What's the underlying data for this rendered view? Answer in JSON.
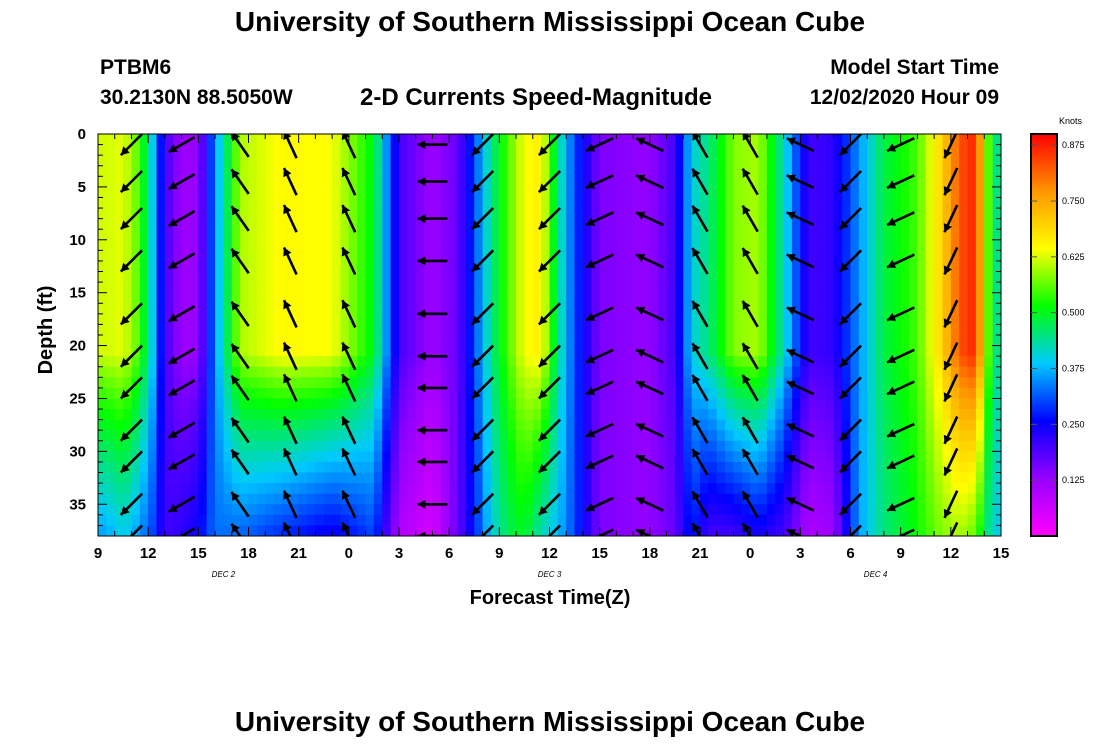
{
  "header": {
    "title": "University of Southern Mississippi Ocean Cube",
    "station": "PTBM6",
    "coords": "30.2130N 88.5050W",
    "subtitle": "2-D Currents Speed-Magnitude",
    "model_start_label": "Model Start Time",
    "model_start_value": "12/02/2020 Hour 09"
  },
  "footer": {
    "title": "University of Southern Mississippi Ocean Cube"
  },
  "colors": {
    "scale": [
      "#ff00ff",
      "#9600ff",
      "#0000ff",
      "#00c8ff",
      "#00ff00",
      "#ffff00",
      "#ff9600",
      "#ff0000"
    ]
  },
  "chart_data": {
    "type": "heatmap",
    "xlabel": "Forecast Time(Z)",
    "ylabel": "Depth (ft)",
    "x_range_hours": [
      0,
      54
    ],
    "x_ticks": [
      {
        "h": 0,
        "label": "9"
      },
      {
        "h": 3,
        "label": "12"
      },
      {
        "h": 6,
        "label": "15"
      },
      {
        "h": 9,
        "label": "18"
      },
      {
        "h": 12,
        "label": "21"
      },
      {
        "h": 15,
        "label": "0"
      },
      {
        "h": 18,
        "label": "3"
      },
      {
        "h": 21,
        "label": "6"
      },
      {
        "h": 24,
        "label": "9"
      },
      {
        "h": 27,
        "label": "12"
      },
      {
        "h": 30,
        "label": "15"
      },
      {
        "h": 33,
        "label": "18"
      },
      {
        "h": 36,
        "label": "21"
      },
      {
        "h": 39,
        "label": "0"
      },
      {
        "h": 42,
        "label": "3"
      },
      {
        "h": 45,
        "label": "6"
      },
      {
        "h": 48,
        "label": "9"
      },
      {
        "h": 51,
        "label": "12"
      },
      {
        "h": 54,
        "label": "15"
      }
    ],
    "day_labels": [
      {
        "h": 7.5,
        "label": "DEC 2"
      },
      {
        "h": 27,
        "label": "DEC 3"
      },
      {
        "h": 46.5,
        "label": "DEC 4"
      }
    ],
    "y_ticks": [
      0,
      5,
      10,
      15,
      20,
      25,
      30,
      35
    ],
    "y_range_ft": [
      0,
      38
    ],
    "colorbar": {
      "unit": "Knots",
      "range": [
        0,
        0.9
      ],
      "ticks": [
        "0.875",
        "0.750",
        "0.625",
        "0.500",
        "0.375",
        "0.250",
        "0.125"
      ]
    },
    "speed_columns_knots": [
      {
        "h": 0.5,
        "top": 0.62,
        "bottom": 0.36
      },
      {
        "h": 1.5,
        "top": 0.63,
        "bottom": 0.4
      },
      {
        "h": 2.5,
        "top": 0.55,
        "bottom": 0.35
      },
      {
        "h": 3.25,
        "top": 0.4,
        "bottom": 0.3
      },
      {
        "h": 4.0,
        "top": 0.2,
        "bottom": 0.2
      },
      {
        "h": 5.0,
        "top": 0.12,
        "bottom": 0.22
      },
      {
        "h": 6.0,
        "top": 0.13,
        "bottom": 0.25
      },
      {
        "h": 7.0,
        "top": 0.35,
        "bottom": 0.33
      },
      {
        "h": 8.5,
        "top": 0.6,
        "bottom": 0.32
      },
      {
        "h": 11.0,
        "top": 0.65,
        "bottom": 0.28
      },
      {
        "h": 14.0,
        "top": 0.64,
        "bottom": 0.24
      },
      {
        "h": 16.5,
        "top": 0.5,
        "bottom": 0.3
      },
      {
        "h": 18.0,
        "top": 0.2,
        "bottom": 0.1
      },
      {
        "h": 20.0,
        "top": 0.12,
        "bottom": 0.05
      },
      {
        "h": 21.5,
        "top": 0.17,
        "bottom": 0.17
      },
      {
        "h": 22.5,
        "top": 0.3,
        "bottom": 0.27
      },
      {
        "h": 23.5,
        "top": 0.45,
        "bottom": 0.4
      },
      {
        "h": 24.5,
        "top": 0.55,
        "bottom": 0.47
      },
      {
        "h": 25.5,
        "top": 0.64,
        "bottom": 0.5
      },
      {
        "h": 26.5,
        "top": 0.66,
        "bottom": 0.42
      },
      {
        "h": 27.5,
        "top": 0.45,
        "bottom": 0.38
      },
      {
        "h": 28.5,
        "top": 0.3,
        "bottom": 0.3
      },
      {
        "h": 30.0,
        "top": 0.15,
        "bottom": 0.15
      },
      {
        "h": 33.0,
        "top": 0.13,
        "bottom": 0.13
      },
      {
        "h": 34.5,
        "top": 0.2,
        "bottom": 0.17
      },
      {
        "h": 35.5,
        "top": 0.4,
        "bottom": 0.28
      },
      {
        "h": 36.5,
        "top": 0.45,
        "bottom": 0.2
      },
      {
        "h": 38.0,
        "top": 0.58,
        "bottom": 0.2
      },
      {
        "h": 39.5,
        "top": 0.6,
        "bottom": 0.24
      },
      {
        "h": 41.0,
        "top": 0.42,
        "bottom": 0.2
      },
      {
        "h": 42.5,
        "top": 0.2,
        "bottom": 0.1
      },
      {
        "h": 44.0,
        "top": 0.22,
        "bottom": 0.12
      },
      {
        "h": 45.5,
        "top": 0.35,
        "bottom": 0.36
      },
      {
        "h": 47.0,
        "top": 0.48,
        "bottom": 0.45
      },
      {
        "h": 49.0,
        "top": 0.55,
        "bottom": 0.52
      },
      {
        "h": 50.5,
        "top": 0.7,
        "bottom": 0.58
      },
      {
        "h": 51.5,
        "top": 0.83,
        "bottom": 0.6
      },
      {
        "h": 52.5,
        "top": 0.87,
        "bottom": 0.56
      },
      {
        "h": 53.5,
        "top": 0.45,
        "bottom": 0.4
      }
    ],
    "vector_columns": [
      {
        "h": 2.0,
        "angle_deg": 225
      },
      {
        "h": 5.0,
        "angle_deg": 210
      },
      {
        "h": 8.5,
        "angle_deg": 125
      },
      {
        "h": 11.5,
        "angle_deg": 115
      },
      {
        "h": 15.0,
        "angle_deg": 115
      },
      {
        "h": 20.0,
        "angle_deg": 180
      },
      {
        "h": 23.0,
        "angle_deg": 225
      },
      {
        "h": 27.0,
        "angle_deg": 225
      },
      {
        "h": 30.0,
        "angle_deg": 205
      },
      {
        "h": 33.0,
        "angle_deg": 155
      },
      {
        "h": 36.0,
        "angle_deg": 120
      },
      {
        "h": 39.0,
        "angle_deg": 120
      },
      {
        "h": 42.0,
        "angle_deg": 155
      },
      {
        "h": 45.0,
        "angle_deg": 225
      },
      {
        "h": 48.0,
        "angle_deg": 205
      },
      {
        "h": 51.0,
        "angle_deg": 245
      }
    ],
    "vector_depths_ft": [
      1,
      4.5,
      8,
      12,
      17,
      21,
      24,
      28,
      31,
      35,
      38
    ]
  }
}
